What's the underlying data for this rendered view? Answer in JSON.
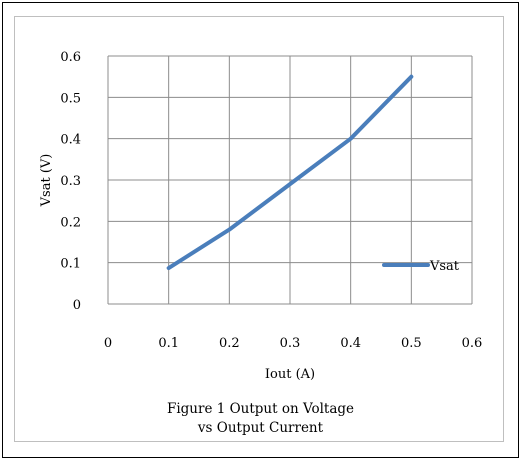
{
  "caption": {
    "line1": "Figure 1  Output on Voltage",
    "line2": "vs Output Current"
  },
  "chart_data": {
    "type": "line",
    "title": "",
    "xlabel": "Iout (A)",
    "ylabel": "Vsat (V)",
    "xlim": [
      0,
      0.6
    ],
    "ylim": [
      0,
      0.6
    ],
    "x_ticks": [
      "0",
      "0.1",
      "0.2",
      "0.3",
      "0.4",
      "0.5",
      "0.6"
    ],
    "y_ticks": [
      "0",
      "0.1",
      "0.2",
      "0.3",
      "0.4",
      "0.5",
      "0.6"
    ],
    "grid": true,
    "legend": "right",
    "series": [
      {
        "name": "Vsat",
        "color": "#4a7ebb",
        "x": [
          0.1,
          0.2,
          0.3,
          0.4,
          0.5
        ],
        "y": [
          0.087,
          0.18,
          0.29,
          0.4,
          0.55
        ]
      }
    ]
  }
}
